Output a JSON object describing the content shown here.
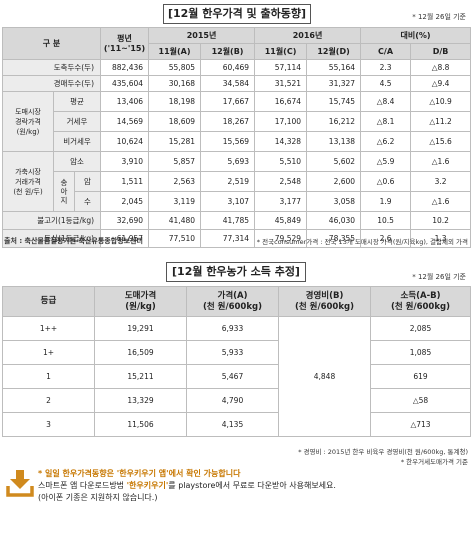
{
  "section1": {
    "title": "[12월 한우가격 및 출하동향]",
    "date_note": "* 12월 26일 기준",
    "headers": {
      "category": "구 분",
      "avg": "평년\n('11~'15)",
      "year2015": "2015년",
      "year2016": "2016년",
      "ratio": "대비(%)",
      "nov_a": "11월(A)",
      "dec_b": "12월(B)",
      "nov_c": "11월(C)",
      "dec_d": "12월(D)",
      "ca": "C/A",
      "db": "D/B"
    },
    "rows": [
      {
        "label": "도축두수(두)",
        "values": [
          "882,436",
          "55,805",
          "60,469",
          "57,114",
          "55,164",
          "2.3",
          "△8.8"
        ]
      },
      {
        "label": "경매두수(두)",
        "values": [
          "435,604",
          "30,168",
          "34,584",
          "31,521",
          "31,327",
          "4.5",
          "△9.4"
        ]
      }
    ],
    "wholesale_group": "도매시장\n경락가격\n(원/kg)",
    "wholesale_rows": [
      {
        "label": "평균",
        "values": [
          "13,406",
          "18,198",
          "17,667",
          "16,674",
          "15,745",
          "△8.4",
          "△10.9"
        ]
      },
      {
        "label": "거세우",
        "values": [
          "14,569",
          "18,609",
          "18,267",
          "17,100",
          "16,212",
          "△8.1",
          "△11.2"
        ]
      },
      {
        "label": "비거세우",
        "values": [
          "10,624",
          "15,281",
          "15,569",
          "14,328",
          "13,138",
          "△6.2",
          "△15.6"
        ]
      }
    ],
    "farm_group": "가축시장\n거래가격\n(천 원/두)",
    "farm_female_row": {
      "label": "암소",
      "values": [
        "3,910",
        "5,857",
        "5,693",
        "5,510",
        "5,602",
        "△5.9",
        "△1.6"
      ]
    },
    "calf_label": "송\n아\n지",
    "calf_rows": [
      {
        "label": "암",
        "values": [
          "1,511",
          "2,563",
          "2,519",
          "2,548",
          "2,600",
          "△0.6",
          "3.2"
        ]
      },
      {
        "label": "수",
        "values": [
          "2,045",
          "3,119",
          "3,107",
          "3,177",
          "3,058",
          "1.9",
          "△1.6"
        ]
      }
    ],
    "tail_rows": [
      {
        "label": "불고기(1등급/kg)",
        "values": [
          "32,690",
          "41,480",
          "41,785",
          "45,849",
          "46,030",
          "10.5",
          "10.2"
        ]
      },
      {
        "label": "등심(1등급/kg)",
        "values": [
          "61,957",
          "77,510",
          "77,314",
          "79,529",
          "78,355",
          "2.6",
          "1.3"
        ]
      }
    ],
    "source_note": "출처 : 축산물품질평가원 축산유통종합정보센터",
    "price_note": "* 전국consumer가격 : 전국 13개 도매시장 가격(원/지육kg), 결함제외 가격"
  },
  "section2": {
    "title": "[12월 한우농가 소득 추정]",
    "date_note": "* 12월 26일 기준",
    "headers": {
      "grade": "등급",
      "wholesale": "도매가격\n(원/kg)",
      "price": "가격(A)\n(천 원/600kg)",
      "cost": "경영비(B)\n(천 원/600kg)",
      "income": "소득(A-B)\n(천 원/600kg)"
    },
    "rows": [
      {
        "grade": "1++",
        "wholesale": "19,291",
        "price": "6,933",
        "income": "2,085"
      },
      {
        "grade": "1+",
        "wholesale": "16,509",
        "price": "5,933",
        "income": "1,085"
      },
      {
        "grade": "1",
        "wholesale": "15,211",
        "price": "5,467",
        "income": "619"
      },
      {
        "grade": "2",
        "wholesale": "13,329",
        "price": "4,790",
        "income": "△58"
      },
      {
        "grade": "3",
        "wholesale": "11,506",
        "price": "4,135",
        "income": "△713"
      }
    ],
    "cost_value": "4,848",
    "note1": "* 경영비 : 2015년 한우 비육우 경영비(천 원/600kg, 통계청)",
    "note2": "* 한우거세도매가격 기준"
  },
  "bottom": {
    "line1": "* 일일 한우가격동향은 '한우키우기 앱'에서 확인 가능합니다",
    "line2_pre": "스마트폰 앱 다운로드방법 ",
    "line2_hl": "'한우키우기'",
    "line2_post": "를 playstore에서 무료로 다운받아 사용해보세요.",
    "line3": "(아이폰 기종은 지원하지 않습니다.)",
    "download_icon": "download-icon"
  }
}
